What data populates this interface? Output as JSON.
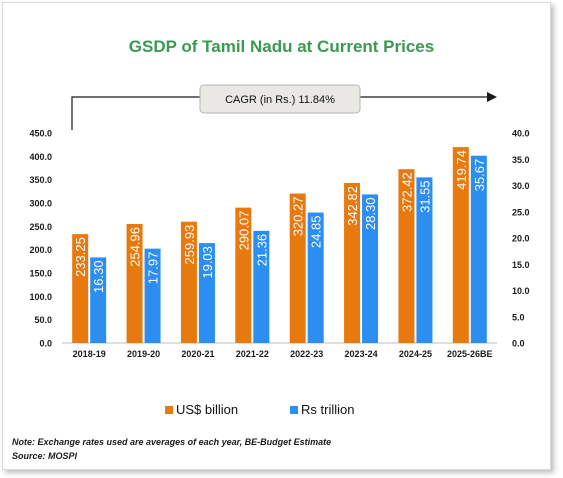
{
  "chart_data": {
    "type": "bar",
    "title": "GSDP of Tamil Nadu at Current Prices",
    "categories": [
      "2018-19",
      "2019-20",
      "2020-21",
      "2021-22",
      "2022-23",
      "2023-24",
      "2024-25",
      "2025-26BE"
    ],
    "series": [
      {
        "name": "US$ billion",
        "values": [
          233.25,
          254.96,
          259.93,
          290.07,
          320.27,
          342.82,
          372.42,
          419.74
        ],
        "color": "#e8790e",
        "axis": "left"
      },
      {
        "name": "Rs trillion",
        "values": [
          16.3,
          17.97,
          19.03,
          21.36,
          24.85,
          28.3,
          31.55,
          35.67
        ],
        "color": "#2b8ef0",
        "axis": "right"
      }
    ],
    "y_left": {
      "min": 0,
      "max": 450,
      "step": 50,
      "tick_labels": [
        "0.0",
        "50.0",
        "100.0",
        "150.0",
        "200.0",
        "250.0",
        "300.0",
        "350.0",
        "400.0",
        "450.0"
      ]
    },
    "y_right": {
      "min": 0,
      "max": 40,
      "step": 5,
      "tick_labels": [
        "0.0",
        "5.0",
        "10.0",
        "15.0",
        "20.0",
        "25.0",
        "30.0",
        "35.0",
        "40.0"
      ]
    },
    "value_labels_left": [
      "233.25",
      "254.96",
      "259.93",
      "290.07",
      "320.27",
      "342.82",
      "372.42",
      "419.74"
    ],
    "value_labels_right": [
      "16.30",
      "17.97",
      "19.03",
      "21.36",
      "24.85",
      "28.30",
      "31.55",
      "35.67"
    ],
    "annotation": "CAGR (in Rs.) 11.84%",
    "legend_position": "bottom",
    "grid": false
  },
  "footer": {
    "note": "Note: Exchange rates used are averages of each year, BE-Budget Estimate",
    "source": "Source: MOSPI"
  }
}
